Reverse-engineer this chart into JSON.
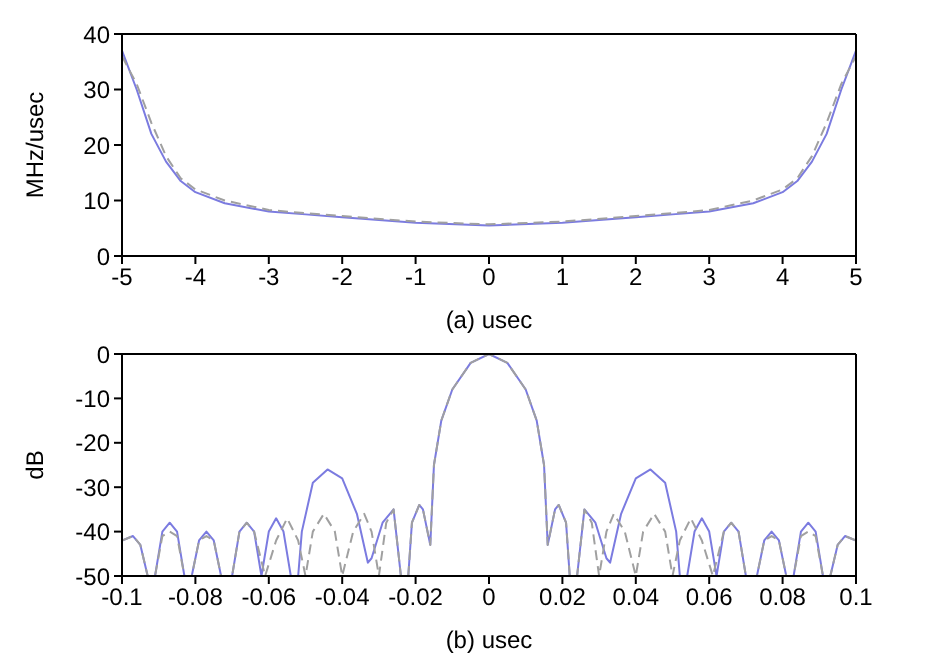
{
  "chart_data": [
    {
      "type": "line",
      "xlabel": "(a)  usec",
      "ylabel": "MHz/usec",
      "xlim": [
        -5,
        5
      ],
      "xticks": [
        -5,
        -4,
        -3,
        -2,
        -1,
        0,
        1,
        2,
        3,
        4,
        5
      ],
      "ylim": [
        0,
        40
      ],
      "yticks": [
        0,
        10,
        20,
        30,
        40
      ],
      "marker": "none",
      "series": [
        {
          "color": "#7b7be0",
          "line_style": "solid",
          "x": [
            -5,
            -4.8,
            -4.6,
            -4.4,
            -4.2,
            -4,
            -3.6,
            -3,
            -2.5,
            -2,
            -1,
            0,
            1,
            2,
            2.5,
            3,
            3.6,
            4,
            4.2,
            4.4,
            4.6,
            4.8,
            5
          ],
          "values": [
            37,
            30,
            22,
            17,
            13.5,
            11.5,
            9.5,
            8,
            7.5,
            7,
            6,
            5.5,
            6,
            7,
            7.5,
            8,
            9.5,
            11.5,
            13.5,
            17,
            22,
            30,
            37
          ]
        },
        {
          "color": "#a0a0a0",
          "line_style": "dashed",
          "x": [
            -5,
            -4.8,
            -4.6,
            -4.4,
            -4.2,
            -4,
            -3.6,
            -3,
            -2.5,
            -2,
            -1,
            0,
            1,
            2,
            2.5,
            3,
            3.6,
            4,
            4.2,
            4.4,
            4.6,
            4.8,
            5
          ],
          "values": [
            36,
            31,
            24,
            18,
            14,
            12,
            10,
            8.3,
            7.7,
            7.2,
            6.2,
            5.7,
            6.2,
            7.2,
            7.7,
            8.3,
            10,
            12,
            14,
            18,
            24,
            31,
            36
          ]
        }
      ]
    },
    {
      "type": "line",
      "xlabel": "(b)  usec",
      "ylabel": "dB",
      "xlim": [
        -0.1,
        0.1
      ],
      "xticks": [
        {
          "value": -0.1,
          "label": "-0.1"
        },
        {
          "value": -0.08,
          "label": "-0.08"
        },
        {
          "value": -0.06,
          "label": "-0.06"
        },
        {
          "value": -0.04,
          "label": "-0.04"
        },
        {
          "value": -0.02,
          "label": "-0.02"
        },
        0,
        {
          "value": 0.02,
          "label": "0.02"
        },
        {
          "value": 0.04,
          "label": "0.04"
        },
        {
          "value": 0.06,
          "label": "0.06"
        },
        {
          "value": 0.08,
          "label": "0.08"
        },
        {
          "value": 0.1,
          "label": "0.1"
        }
      ],
      "ylim": [
        -50,
        0
      ],
      "yticks": [
        -50,
        -40,
        -30,
        -20,
        -10,
        0
      ],
      "marker": "none",
      "series": [
        {
          "color": "#7b7be0",
          "line_style": "solid",
          "x": [
            -0.1,
            -0.097,
            -0.095,
            -0.093,
            -0.091,
            -0.089,
            -0.087,
            -0.085,
            -0.083,
            -0.081,
            -0.079,
            -0.077,
            -0.075,
            -0.073,
            -0.07,
            -0.068,
            -0.066,
            -0.064,
            -0.062,
            -0.06,
            -0.058,
            -0.056,
            -0.054,
            -0.052,
            -0.051,
            -0.048,
            -0.044,
            -0.04,
            -0.036,
            -0.033,
            -0.032,
            -0.029,
            -0.026,
            -0.024,
            -0.022,
            -0.021,
            -0.019,
            -0.018,
            -0.016,
            -0.015,
            -0.013,
            -0.01,
            -0.005,
            0,
            0.005,
            0.01,
            0.013,
            0.015,
            0.016,
            0.018,
            0.019,
            0.021,
            0.022,
            0.024,
            0.026,
            0.029,
            0.032,
            0.033,
            0.036,
            0.04,
            0.044,
            0.048,
            0.051,
            0.052,
            0.054,
            0.056,
            0.058,
            0.06,
            0.062,
            0.064,
            0.066,
            0.068,
            0.07,
            0.073,
            0.075,
            0.077,
            0.079,
            0.081,
            0.083,
            0.085,
            0.087,
            0.089,
            0.091,
            0.093,
            0.095,
            0.097,
            0.1
          ],
          "values": [
            -42,
            -41,
            -43,
            -50,
            -50,
            -40,
            -38,
            -40,
            -50,
            -50,
            -42,
            -40,
            -42,
            -50,
            -50,
            -40,
            -38,
            -40,
            -50,
            -40,
            -37,
            -40,
            -50,
            -50,
            -40,
            -29,
            -26,
            -28,
            -36,
            -47,
            -46,
            -38,
            -35,
            -50,
            -50,
            -38,
            -34,
            -35,
            -43,
            -25,
            -15,
            -8,
            -2,
            0,
            -2,
            -8,
            -15,
            -25,
            -43,
            -35,
            -34,
            -38,
            -50,
            -50,
            -35,
            -38,
            -46,
            -47,
            -36,
            -28,
            -26,
            -29,
            -40,
            -50,
            -50,
            -40,
            -37,
            -40,
            -50,
            -40,
            -38,
            -40,
            -50,
            -50,
            -42,
            -40,
            -42,
            -50,
            -50,
            -40,
            -38,
            -40,
            -50,
            -50,
            -43,
            -41,
            -42
          ]
        },
        {
          "color": "#a0a0a0",
          "line_style": "dashed",
          "x": [
            -0.1,
            -0.097,
            -0.095,
            -0.093,
            -0.091,
            -0.089,
            -0.087,
            -0.085,
            -0.083,
            -0.081,
            -0.079,
            -0.077,
            -0.075,
            -0.073,
            -0.07,
            -0.068,
            -0.066,
            -0.064,
            -0.061,
            -0.058,
            -0.055,
            -0.052,
            -0.05,
            -0.048,
            -0.045,
            -0.042,
            -0.04,
            -0.037,
            -0.034,
            -0.032,
            -0.03,
            -0.028,
            -0.026,
            -0.024,
            -0.022,
            -0.021,
            -0.019,
            -0.018,
            -0.016,
            -0.015,
            -0.013,
            -0.01,
            -0.005,
            0,
            0.005,
            0.01,
            0.013,
            0.015,
            0.016,
            0.018,
            0.019,
            0.021,
            0.022,
            0.024,
            0.026,
            0.028,
            0.03,
            0.032,
            0.034,
            0.037,
            0.04,
            0.042,
            0.045,
            0.048,
            0.05,
            0.052,
            0.055,
            0.058,
            0.061,
            0.064,
            0.066,
            0.068,
            0.07,
            0.073,
            0.075,
            0.077,
            0.079,
            0.081,
            0.083,
            0.085,
            0.087,
            0.089,
            0.091,
            0.093,
            0.095,
            0.097,
            0.1
          ],
          "values": [
            -42,
            -41,
            -43,
            -50,
            -50,
            -41,
            -40,
            -41,
            -50,
            -50,
            -42,
            -41,
            -42,
            -50,
            -50,
            -40,
            -38,
            -40,
            -50,
            -42,
            -37,
            -42,
            -50,
            -40,
            -36,
            -40,
            -50,
            -40,
            -36,
            -40,
            -50,
            -38,
            -35,
            -50,
            -50,
            -38,
            -34,
            -35,
            -43,
            -25,
            -15,
            -8,
            -2,
            0,
            -2,
            -8,
            -15,
            -25,
            -43,
            -35,
            -34,
            -38,
            -50,
            -50,
            -35,
            -38,
            -50,
            -40,
            -36,
            -40,
            -50,
            -40,
            -36,
            -40,
            -50,
            -42,
            -37,
            -42,
            -50,
            -40,
            -38,
            -40,
            -50,
            -50,
            -42,
            -41,
            -42,
            -50,
            -50,
            -41,
            -40,
            -41,
            -50,
            -50,
            -43,
            -41,
            -42
          ]
        }
      ]
    }
  ]
}
